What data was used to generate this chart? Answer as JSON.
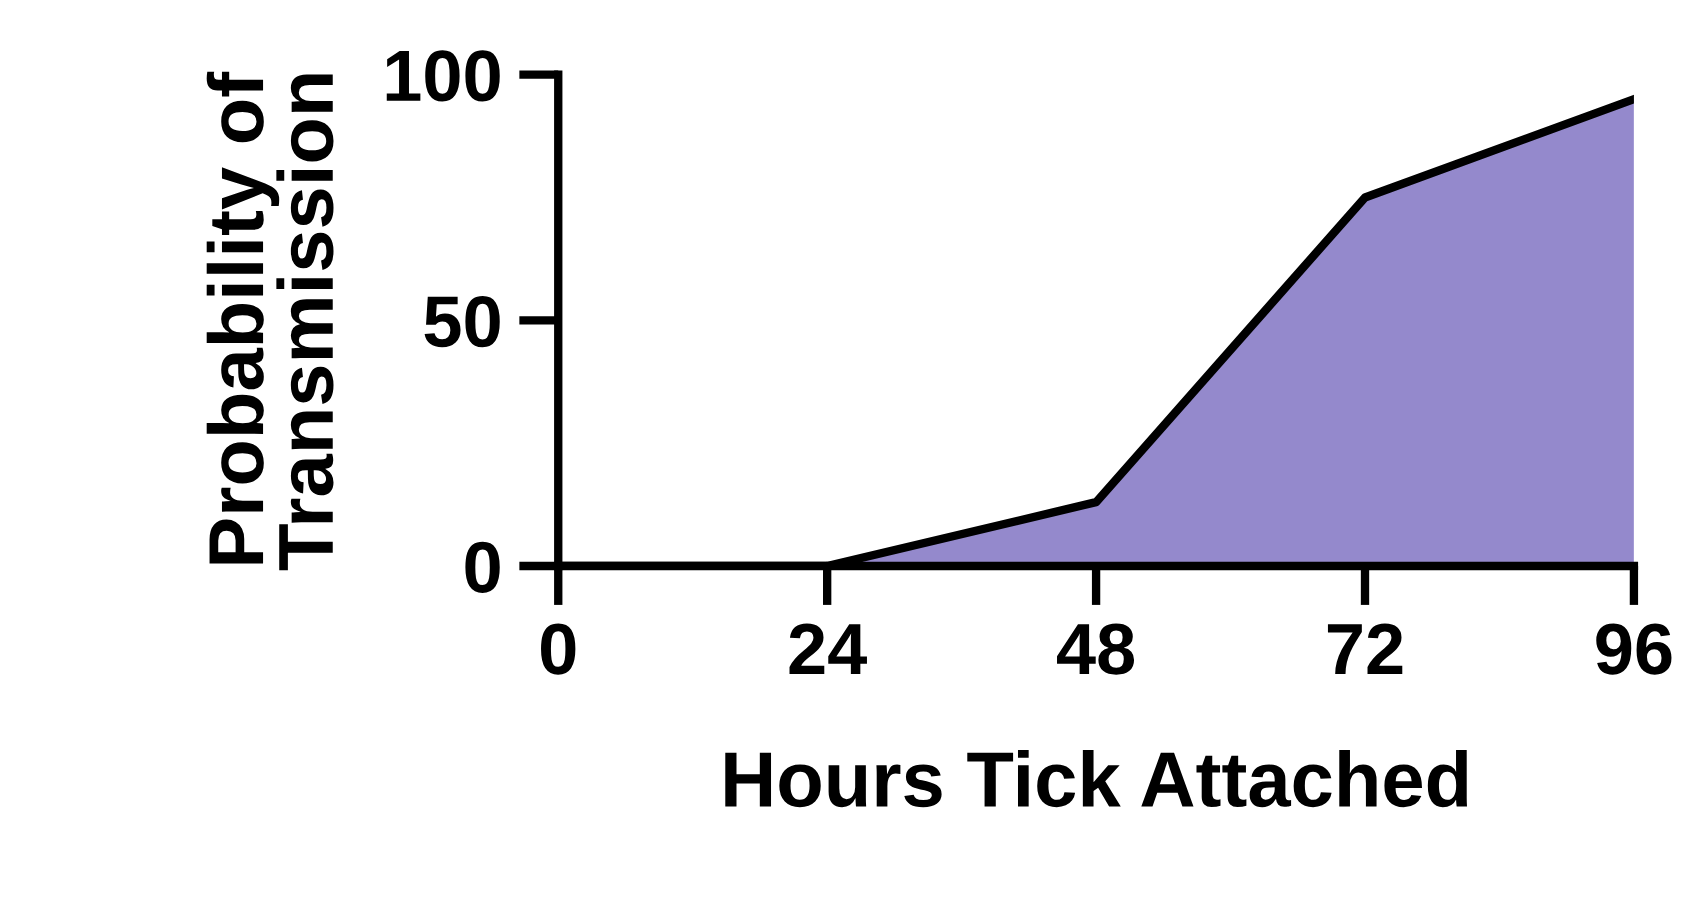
{
  "chart_data": {
    "type": "area",
    "xlabel": "Hours Tick Attached",
    "ylabel": "Probability of\nTransmission",
    "x": [
      0,
      24,
      48,
      72,
      96
    ],
    "series": [
      {
        "color": "#9489cc",
        "values": [
          0,
          0,
          13,
          75,
          95
        ]
      }
    ],
    "xlim": [
      0,
      96
    ],
    "ylim": [
      0,
      100
    ],
    "xticks": [
      0,
      24,
      48,
      72,
      96
    ],
    "yticks": [
      0,
      50,
      100
    ],
    "grid": false,
    "legend": false
  }
}
